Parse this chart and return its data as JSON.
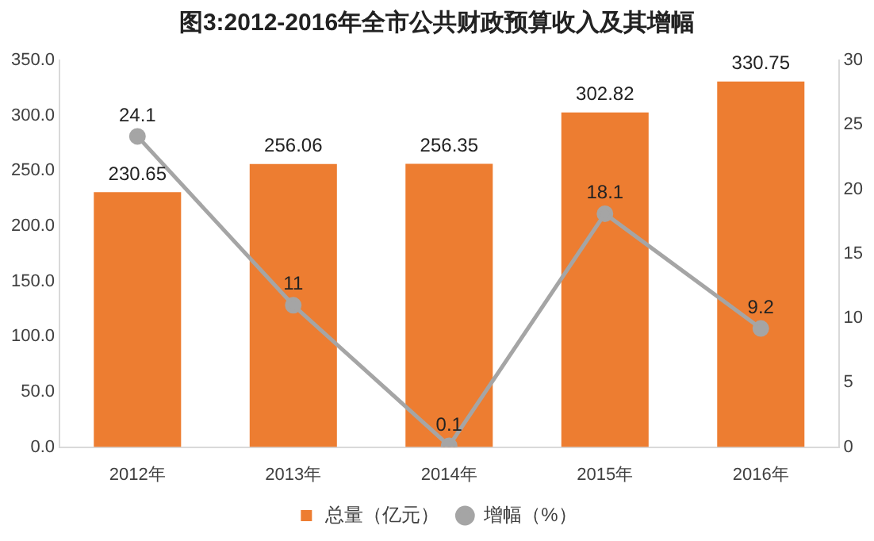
{
  "chart_data": {
    "type": "bar",
    "title": "图3:2012-2016年全市公共财政预算收入及其增幅",
    "categories": [
      "2012年",
      "2013年",
      "2014年",
      "2015年",
      "2016年"
    ],
    "series": [
      {
        "name": "总量（亿元）",
        "color": "#ed7d31",
        "values": [
          230.65,
          256.06,
          256.35,
          302.82,
          330.75
        ]
      },
      {
        "name": "增幅（%）",
        "type": "line",
        "axis": "y2",
        "color": "#a5a5a5",
        "values": [
          24.1,
          11,
          0.1,
          18.1,
          9.2
        ]
      }
    ],
    "ylim": [
      0,
      350
    ],
    "yticks": [
      {
        "value": 0,
        "label": "0.0"
      },
      {
        "value": 50,
        "label": "50.0"
      },
      {
        "value": 100,
        "label": "100.0"
      },
      {
        "value": 150,
        "label": "150.0"
      },
      {
        "value": 200,
        "label": "200.0"
      },
      {
        "value": 250,
        "label": "250.0"
      },
      {
        "value": 300,
        "label": "300.0"
      },
      {
        "value": 350,
        "label": "350.0"
      }
    ],
    "y2lim": [
      0,
      30
    ],
    "y2ticks": [
      0,
      5,
      10,
      15,
      20,
      25,
      30
    ],
    "data_labels": true,
    "legend": "bottom",
    "marker": "circle",
    "grid": false
  }
}
